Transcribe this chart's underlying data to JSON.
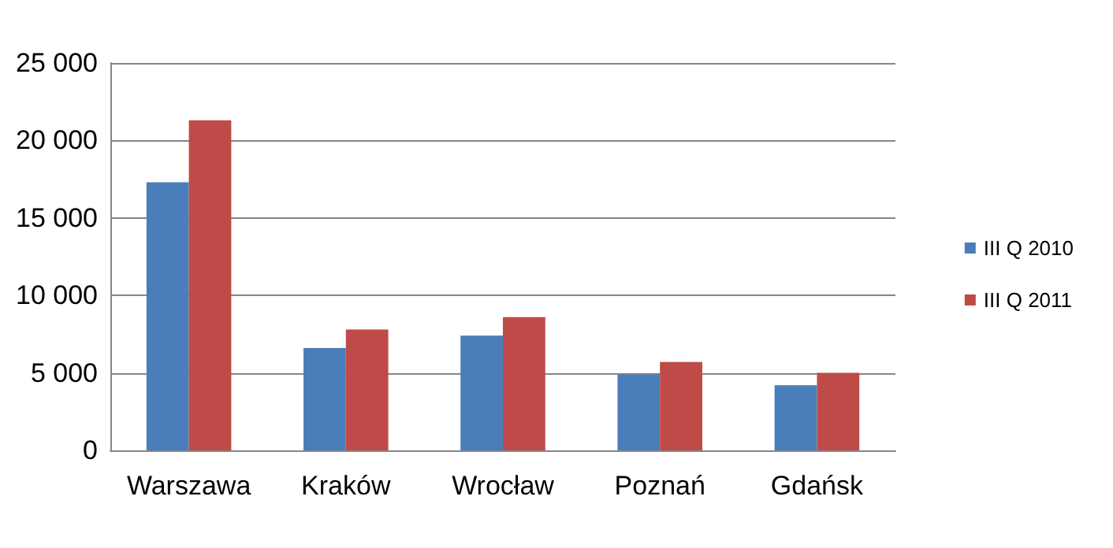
{
  "chart_data": {
    "type": "bar",
    "categories": [
      "Warszawa",
      "Kraków",
      "Wrocław",
      "Poznań",
      "Gdańsk"
    ],
    "series": [
      {
        "name": "III Q 2010",
        "color": "#4a7ebb",
        "values": [
          17300,
          6600,
          7400,
          4900,
          4200
        ]
      },
      {
        "name": "III Q 2011",
        "color": "#be4b48",
        "values": [
          21300,
          7800,
          8600,
          5700,
          5000
        ]
      }
    ],
    "ylim": [
      0,
      25000
    ],
    "yticks": [
      {
        "value": 0,
        "label": "0"
      },
      {
        "value": 5000,
        "label": "5 000"
      },
      {
        "value": 10000,
        "label": "10 000"
      },
      {
        "value": 15000,
        "label": "15 000"
      },
      {
        "value": 20000,
        "label": "20 000"
      },
      {
        "value": 25000,
        "label": "25 000"
      }
    ],
    "grid": "y",
    "legend": "right"
  }
}
